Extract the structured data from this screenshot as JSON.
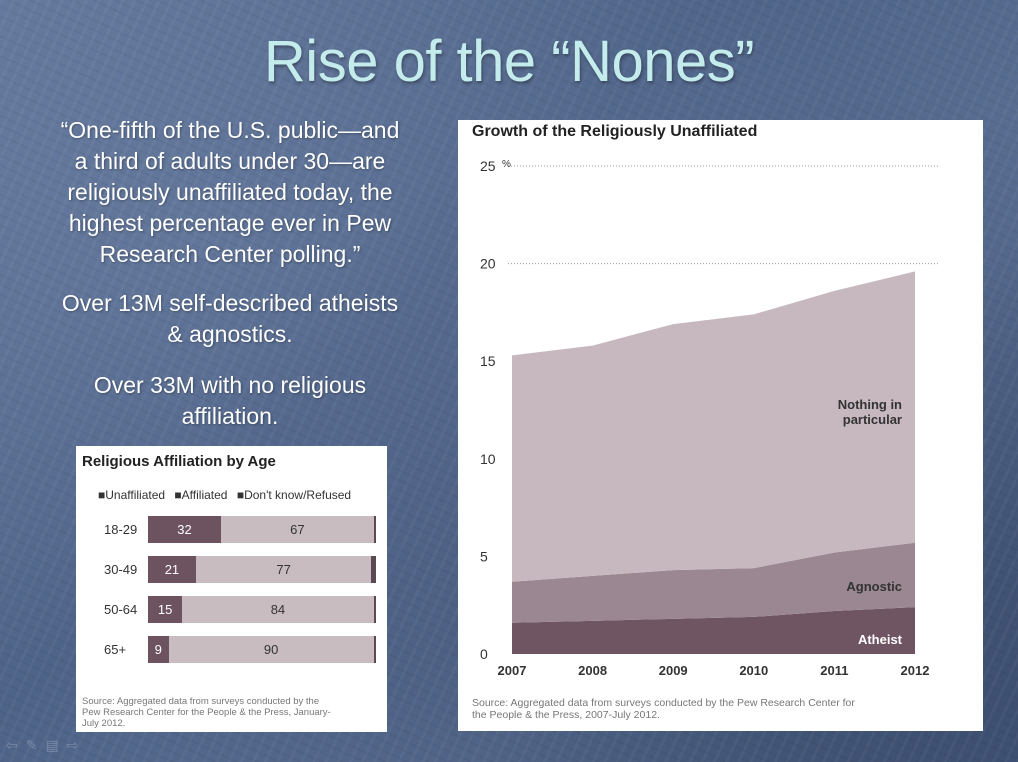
{
  "slide": {
    "title": "Rise of the “Nones”",
    "quote_lines": [
      "“One-fifth of the U.S. public—and",
      "a third of adults under 30—are",
      "religiously unaffiliated today, the",
      "highest percentage ever in Pew",
      "Research Center polling.”"
    ],
    "para2_lines": [
      "Over 13M self-described atheists",
      "& agnostics."
    ],
    "para3_lines": [
      "Over 33M with no religious",
      "affiliation."
    ]
  },
  "nav": {
    "icons": [
      "arrow-left-icon",
      "pen-icon",
      "menu-icon",
      "arrow-right-icon"
    ]
  },
  "chart_data": [
    {
      "type": "bar",
      "stacked": true,
      "orientation": "horizontal",
      "title": "Religious Affiliation by Age",
      "categories": [
        "18-29",
        "30-49",
        "50-64",
        "65+"
      ],
      "series": [
        {
          "name": "Unaffiliated",
          "values": [
            32,
            21,
            15,
            9
          ],
          "color": "#6d5260"
        },
        {
          "name": "Affiliated",
          "values": [
            67,
            77,
            84,
            90
          ],
          "color": "#c9bcc1"
        },
        {
          "name": "Don't know/Refused",
          "values": [
            1,
            2,
            1,
            1
          ],
          "color": "#5b4a52"
        }
      ],
      "legend_labels": [
        "■Unaffiliated",
        "■Affiliated",
        "■Don't know/Refused"
      ],
      "legend_position": "top",
      "source_lines": [
        "Source: Aggregated data from surveys conducted by the",
        "Pew Research Center for the People & the Press, January-",
        "July 2012."
      ]
    },
    {
      "type": "area",
      "stacked": true,
      "title": "Growth of the Religiously Unaffiliated",
      "x": [
        2007,
        2008,
        2009,
        2010,
        2011,
        2012
      ],
      "series": [
        {
          "name": "Atheist",
          "values": [
            1.6,
            1.7,
            1.8,
            1.9,
            2.2,
            2.4
          ],
          "color": "#6f5461"
        },
        {
          "name": "Agnostic",
          "values": [
            2.1,
            2.3,
            2.5,
            2.5,
            3.0,
            3.3
          ],
          "color": "#9b8791"
        },
        {
          "name": "Nothing in particular",
          "values": [
            11.6,
            11.8,
            12.6,
            13.0,
            13.4,
            13.9
          ],
          "color": "#c6b8be"
        }
      ],
      "series_labels": [
        {
          "lines": [
            "Atheist"
          ]
        },
        {
          "lines": [
            "Agnostic"
          ]
        },
        {
          "lines": [
            "Nothing in",
            "particular"
          ]
        }
      ],
      "ylim": [
        0,
        25
      ],
      "yticks": [
        "0",
        "5",
        "10",
        "15",
        "20",
        "25"
      ],
      "y_unit_label": "%",
      "xticks": [
        "2007",
        "2008",
        "2009",
        "2010",
        "2011",
        "2012"
      ],
      "gridlines": "dotted at 20 and 25",
      "source_lines": [
        "Source: Aggregated data from surveys conducted by the Pew  Research Center for",
        "the People & the Press, 2007-July 2012."
      ]
    }
  ]
}
